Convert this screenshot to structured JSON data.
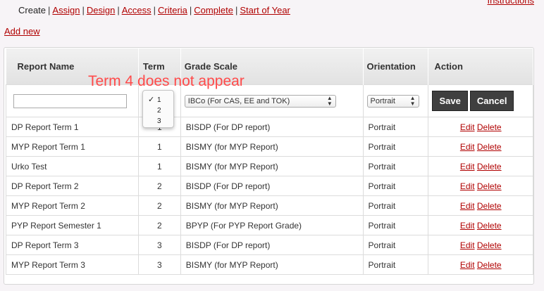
{
  "top": {
    "instructions": "Instructions",
    "nav": [
      {
        "label": "Create",
        "current": true
      },
      {
        "label": "Assign"
      },
      {
        "label": "Design"
      },
      {
        "label": "Access"
      },
      {
        "label": "Criteria"
      },
      {
        "label": "Complete"
      },
      {
        "label": "Start of Year"
      }
    ],
    "separator": "|",
    "add_new": "Add new"
  },
  "table": {
    "headers": {
      "name": "Report Name",
      "term": "Term",
      "grade": "Grade Scale",
      "orientation": "Orientation",
      "action": "Action"
    },
    "edit_row": {
      "name_value": "",
      "term_value": "1",
      "grade_value": "IBCo (For CAS, EE and TOK)",
      "orientation_value": "Portrait",
      "save_label": "Save",
      "cancel_label": "Cancel"
    },
    "rows": [
      {
        "name": "DP Report Term 1",
        "term": "1",
        "grade": "BISDP (For DP report)",
        "orientation": "Portrait"
      },
      {
        "name": "MYP Report Term 1",
        "term": "1",
        "grade": "BISMY (for MYP Report)",
        "orientation": "Portrait"
      },
      {
        "name": "Urko Test",
        "term": "1",
        "grade": "BISMY (for MYP Report)",
        "orientation": "Portrait"
      },
      {
        "name": "DP Report Term 2",
        "term": "2",
        "grade": "BISDP (For DP report)",
        "orientation": "Portrait"
      },
      {
        "name": "MYP Report Term 2",
        "term": "2",
        "grade": "BISMY (for MYP Report)",
        "orientation": "Portrait"
      },
      {
        "name": "PYP Report Semester 1",
        "term": "2",
        "grade": "BPYP (For PYP Report Grade)",
        "orientation": "Portrait"
      },
      {
        "name": "DP Report Term 3",
        "term": "3",
        "grade": "BISDP (For DP report)",
        "orientation": "Portrait"
      },
      {
        "name": "MYP Report Term 3",
        "term": "3",
        "grade": "BISMY (for MYP Report)",
        "orientation": "Portrait"
      }
    ],
    "edit_label": "Edit",
    "delete_label": "Delete"
  },
  "term_dropdown": {
    "options": [
      "1",
      "2",
      "3"
    ],
    "selected_index": 0,
    "check_icon": "checkmark-icon"
  },
  "annotation": "Term 4 does not appear",
  "colors": {
    "link": "#b00000",
    "annotation": "#ff4a4a",
    "button": "#3f3f3f"
  }
}
